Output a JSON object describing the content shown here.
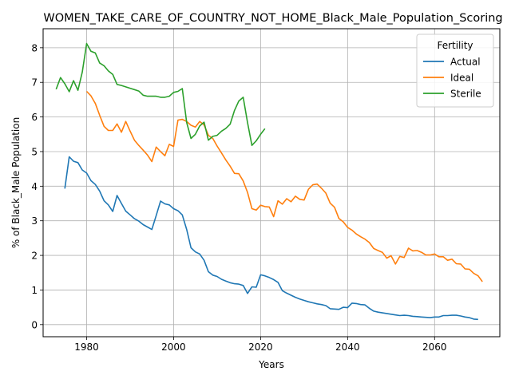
{
  "chart_data": {
    "type": "line",
    "title": "WOMEN_TAKE_CARE_OF_COUNTRY_NOT_HOME_Black_Male_Population_Scoring",
    "xlabel": "Years",
    "ylabel": "% of Black_Male Population",
    "xlim": [
      1970,
      2075
    ],
    "ylim": [
      -0.35,
      8.55
    ],
    "xticks": [
      1980,
      2000,
      2020,
      2040,
      2060
    ],
    "yticks": [
      0,
      1,
      2,
      3,
      4,
      5,
      6,
      7,
      8
    ],
    "grid": true,
    "legend": {
      "title": "Fertility",
      "placement": "top-right"
    },
    "series": [
      {
        "name": "Actual",
        "color": "#1f77b4",
        "points": [
          [
            1975,
            3.93
          ],
          [
            1976,
            4.85
          ],
          [
            1977,
            4.72
          ],
          [
            1978,
            4.68
          ],
          [
            1979,
            4.47
          ],
          [
            1980,
            4.38
          ],
          [
            1981,
            4.16
          ],
          [
            1982,
            4.05
          ],
          [
            1983,
            3.86
          ],
          [
            1984,
            3.58
          ],
          [
            1985,
            3.46
          ],
          [
            1986,
            3.27
          ],
          [
            1987,
            3.73
          ],
          [
            1988,
            3.5
          ],
          [
            1989,
            3.28
          ],
          [
            1990,
            3.17
          ],
          [
            1991,
            3.06
          ],
          [
            1992,
            2.99
          ],
          [
            1993,
            2.89
          ],
          [
            1994,
            2.82
          ],
          [
            1995,
            2.75
          ],
          [
            1996,
            3.15
          ],
          [
            1997,
            3.57
          ],
          [
            1998,
            3.49
          ],
          [
            1999,
            3.46
          ],
          [
            2000,
            3.35
          ],
          [
            2001,
            3.29
          ],
          [
            2002,
            3.17
          ],
          [
            2003,
            2.75
          ],
          [
            2004,
            2.22
          ],
          [
            2005,
            2.1
          ],
          [
            2006,
            2.04
          ],
          [
            2007,
            1.86
          ],
          [
            2008,
            1.53
          ],
          [
            2009,
            1.43
          ],
          [
            2010,
            1.39
          ],
          [
            2011,
            1.31
          ],
          [
            2012,
            1.26
          ],
          [
            2013,
            1.21
          ],
          [
            2014,
            1.18
          ],
          [
            2015,
            1.17
          ],
          [
            2016,
            1.13
          ],
          [
            2017,
            0.9
          ],
          [
            2018,
            1.09
          ],
          [
            2019,
            1.08
          ],
          [
            2020,
            1.44
          ],
          [
            2021,
            1.41
          ],
          [
            2022,
            1.36
          ],
          [
            2023,
            1.3
          ],
          [
            2024,
            1.22
          ],
          [
            2025,
            0.98
          ],
          [
            2026,
            0.91
          ],
          [
            2027,
            0.85
          ],
          [
            2028,
            0.79
          ],
          [
            2029,
            0.74
          ],
          [
            2030,
            0.7
          ],
          [
            2031,
            0.66
          ],
          [
            2032,
            0.63
          ],
          [
            2033,
            0.6
          ],
          [
            2034,
            0.58
          ],
          [
            2035,
            0.55
          ],
          [
            2036,
            0.46
          ],
          [
            2037,
            0.45
          ],
          [
            2038,
            0.44
          ],
          [
            2039,
            0.5
          ],
          [
            2040,
            0.49
          ],
          [
            2041,
            0.62
          ],
          [
            2042,
            0.61
          ],
          [
            2043,
            0.58
          ],
          [
            2044,
            0.57
          ],
          [
            2045,
            0.47
          ],
          [
            2046,
            0.39
          ],
          [
            2047,
            0.36
          ],
          [
            2048,
            0.34
          ],
          [
            2049,
            0.32
          ],
          [
            2050,
            0.3
          ],
          [
            2051,
            0.28
          ],
          [
            2052,
            0.26
          ],
          [
            2053,
            0.27
          ],
          [
            2054,
            0.26
          ],
          [
            2055,
            0.24
          ],
          [
            2056,
            0.23
          ],
          [
            2057,
            0.22
          ],
          [
            2058,
            0.21
          ],
          [
            2059,
            0.2
          ],
          [
            2060,
            0.22
          ],
          [
            2061,
            0.22
          ],
          [
            2062,
            0.26
          ],
          [
            2063,
            0.26
          ],
          [
            2064,
            0.27
          ],
          [
            2065,
            0.27
          ],
          [
            2066,
            0.25
          ],
          [
            2067,
            0.22
          ],
          [
            2068,
            0.2
          ],
          [
            2069,
            0.16
          ],
          [
            2070,
            0.15
          ]
        ]
      },
      {
        "name": "Ideal",
        "color": "#ff7f0e",
        "points": [
          [
            1980,
            6.74
          ],
          [
            1981,
            6.61
          ],
          [
            1982,
            6.39
          ],
          [
            1983,
            6.05
          ],
          [
            1984,
            5.73
          ],
          [
            1985,
            5.61
          ],
          [
            1986,
            5.61
          ],
          [
            1987,
            5.8
          ],
          [
            1988,
            5.56
          ],
          [
            1989,
            5.87
          ],
          [
            1990,
            5.59
          ],
          [
            1991,
            5.33
          ],
          [
            1992,
            5.18
          ],
          [
            1993,
            5.04
          ],
          [
            1994,
            4.9
          ],
          [
            1995,
            4.71
          ],
          [
            1996,
            5.13
          ],
          [
            1997,
            5.0
          ],
          [
            1998,
            4.88
          ],
          [
            1999,
            5.21
          ],
          [
            2000,
            5.15
          ],
          [
            2001,
            5.91
          ],
          [
            2002,
            5.93
          ],
          [
            2003,
            5.87
          ],
          [
            2004,
            5.76
          ],
          [
            2005,
            5.71
          ],
          [
            2006,
            5.87
          ],
          [
            2007,
            5.77
          ],
          [
            2008,
            5.47
          ],
          [
            2009,
            5.38
          ],
          [
            2010,
            5.16
          ],
          [
            2011,
            4.96
          ],
          [
            2012,
            4.76
          ],
          [
            2013,
            4.58
          ],
          [
            2014,
            4.37
          ],
          [
            2015,
            4.36
          ],
          [
            2016,
            4.15
          ],
          [
            2017,
            3.82
          ],
          [
            2018,
            3.35
          ],
          [
            2019,
            3.31
          ],
          [
            2020,
            3.45
          ],
          [
            2021,
            3.41
          ],
          [
            2022,
            3.4
          ],
          [
            2023,
            3.12
          ],
          [
            2024,
            3.58
          ],
          [
            2025,
            3.48
          ],
          [
            2026,
            3.64
          ],
          [
            2027,
            3.55
          ],
          [
            2028,
            3.71
          ],
          [
            2029,
            3.62
          ],
          [
            2030,
            3.6
          ],
          [
            2031,
            3.91
          ],
          [
            2032,
            4.04
          ],
          [
            2033,
            4.06
          ],
          [
            2034,
            3.94
          ],
          [
            2035,
            3.8
          ],
          [
            2036,
            3.51
          ],
          [
            2037,
            3.39
          ],
          [
            2038,
            3.07
          ],
          [
            2039,
            2.97
          ],
          [
            2040,
            2.81
          ],
          [
            2041,
            2.73
          ],
          [
            2042,
            2.62
          ],
          [
            2043,
            2.54
          ],
          [
            2044,
            2.47
          ],
          [
            2045,
            2.37
          ],
          [
            2046,
            2.2
          ],
          [
            2047,
            2.14
          ],
          [
            2048,
            2.09
          ],
          [
            2049,
            1.92
          ],
          [
            2050,
            1.99
          ],
          [
            2051,
            1.75
          ],
          [
            2052,
            1.97
          ],
          [
            2053,
            1.94
          ],
          [
            2054,
            2.21
          ],
          [
            2055,
            2.13
          ],
          [
            2056,
            2.14
          ],
          [
            2057,
            2.09
          ],
          [
            2058,
            2.01
          ],
          [
            2059,
            2.01
          ],
          [
            2060,
            2.04
          ],
          [
            2061,
            1.96
          ],
          [
            2062,
            1.96
          ],
          [
            2063,
            1.86
          ],
          [
            2064,
            1.89
          ],
          [
            2065,
            1.76
          ],
          [
            2066,
            1.75
          ],
          [
            2067,
            1.61
          ],
          [
            2068,
            1.6
          ],
          [
            2069,
            1.48
          ],
          [
            2070,
            1.41
          ],
          [
            2071,
            1.24
          ]
        ]
      },
      {
        "name": "Sterile",
        "color": "#2ca02c",
        "points": [
          [
            1973,
            6.8
          ],
          [
            1974,
            7.14
          ],
          [
            1975,
            6.96
          ],
          [
            1976,
            6.73
          ],
          [
            1977,
            7.05
          ],
          [
            1978,
            6.77
          ],
          [
            1979,
            7.29
          ],
          [
            1980,
            8.12
          ],
          [
            1981,
            7.9
          ],
          [
            1982,
            7.85
          ],
          [
            1983,
            7.56
          ],
          [
            1984,
            7.48
          ],
          [
            1985,
            7.33
          ],
          [
            1986,
            7.23
          ],
          [
            1987,
            6.94
          ],
          [
            1988,
            6.91
          ],
          [
            1989,
            6.87
          ],
          [
            1990,
            6.83
          ],
          [
            1991,
            6.79
          ],
          [
            1992,
            6.75
          ],
          [
            1993,
            6.63
          ],
          [
            1994,
            6.6
          ],
          [
            1995,
            6.6
          ],
          [
            1996,
            6.6
          ],
          [
            1997,
            6.57
          ],
          [
            1998,
            6.57
          ],
          [
            1999,
            6.6
          ],
          [
            2000,
            6.71
          ],
          [
            2001,
            6.74
          ],
          [
            2002,
            6.82
          ],
          [
            2003,
            5.84
          ],
          [
            2004,
            5.38
          ],
          [
            2005,
            5.5
          ],
          [
            2006,
            5.74
          ],
          [
            2007,
            5.85
          ],
          [
            2008,
            5.33
          ],
          [
            2009,
            5.44
          ],
          [
            2010,
            5.47
          ],
          [
            2011,
            5.59
          ],
          [
            2012,
            5.67
          ],
          [
            2013,
            5.79
          ],
          [
            2014,
            6.19
          ],
          [
            2015,
            6.46
          ],
          [
            2016,
            6.57
          ],
          [
            2017,
            5.84
          ],
          [
            2018,
            5.18
          ],
          [
            2019,
            5.31
          ],
          [
            2020,
            5.5
          ],
          [
            2021,
            5.66
          ]
        ]
      }
    ]
  }
}
